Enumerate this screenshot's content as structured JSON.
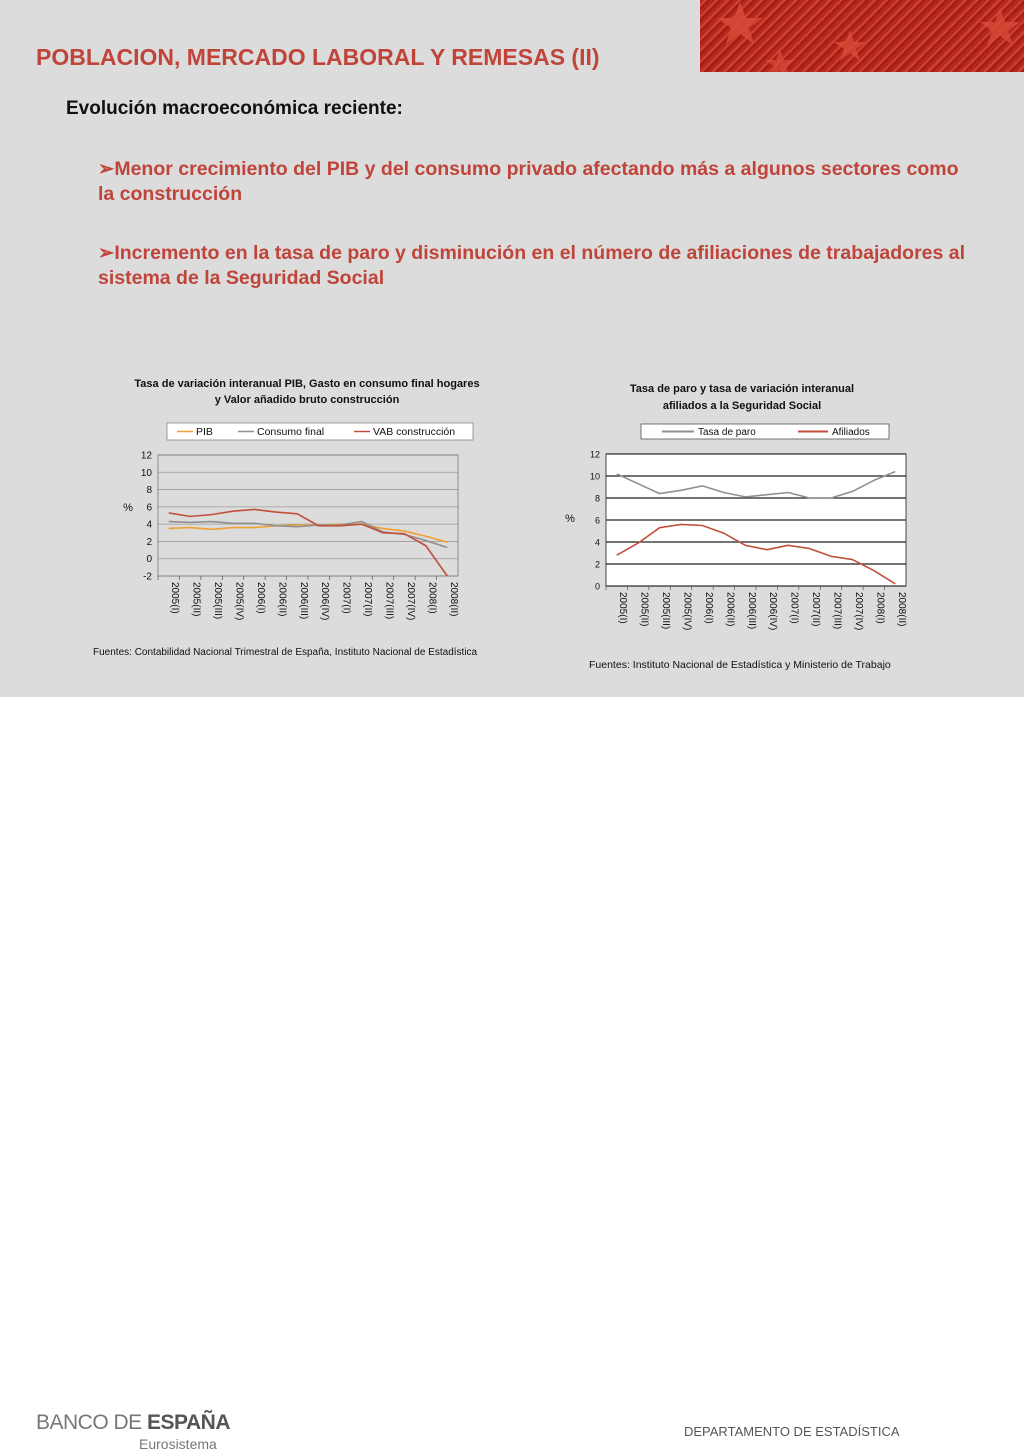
{
  "header": {
    "title": "POBLACION, MERCADO LABORAL Y REMESAS (II)"
  },
  "content": {
    "subtitle": "Evolución macroeconómica reciente:",
    "bullets": [
      {
        "arrow": "➢",
        "text": "Menor crecimiento del PIB y del consumo privado afectando más a algunos sectores como la construcción"
      },
      {
        "arrow": "➢",
        "text": "Incremento en la tasa de paro y disminución en el número de afiliaciones de trabajadores al sistema de la Seguridad Social"
      }
    ]
  },
  "chart_data": [
    {
      "type": "line",
      "title": "Tasa de variación interanual PIB, Gasto en consumo final hogares y Valor añadido bruto construcción",
      "title_lines": [
        "Tasa de variación interanual PIB, Gasto en consumo final hogares",
        "y Valor añadido bruto construcción"
      ],
      "ylabel": "%",
      "ylim": [
        -2,
        12
      ],
      "yticks": [
        "12",
        "10",
        "8",
        "6",
        "4",
        "2",
        "0",
        "-2"
      ],
      "grid": true,
      "legend": "top",
      "categories": [
        "2005(I)",
        "2005(II)",
        "2005(III)",
        "2005(IV)",
        "2006(I)",
        "2006(II)",
        "2006(III)",
        "2006(IV)",
        "2007(I)",
        "2007(II)",
        "2007(III)",
        "2007(IV)",
        "2008(I)",
        "2008(II)"
      ],
      "series": [
        {
          "name": "PIB",
          "color": "#f0a030",
          "values": [
            3.5,
            3.6,
            3.4,
            3.6,
            3.6,
            3.8,
            3.9,
            3.9,
            4.0,
            4.0,
            3.5,
            3.2,
            2.6,
            1.9
          ]
        },
        {
          "name": "Consumo final",
          "color": "#909090",
          "values": [
            4.3,
            4.2,
            4.3,
            4.1,
            4.1,
            3.8,
            3.7,
            3.9,
            3.9,
            4.3,
            3.1,
            2.8,
            2.1,
            1.3
          ]
        },
        {
          "name": "VAB construcción",
          "color": "#c0503c",
          "values": [
            5.3,
            4.9,
            5.1,
            5.5,
            5.7,
            5.4,
            5.2,
            3.8,
            3.8,
            4.0,
            3.0,
            2.9,
            1.5,
            -2.0
          ]
        }
      ],
      "source": "Fuentes: Contabilidad Nacional Trimestral de España, Instituto Nacional de Estadística"
    },
    {
      "type": "line",
      "title": "Tasa de paro y tasa de variación interanual afiliados a la Seguridad Social",
      "title_lines": [
        "Tasa de paro y tasa de variación interanual",
        "afiliados a la Seguridad Social"
      ],
      "ylabel": "%",
      "ylim": [
        0,
        12
      ],
      "yticks": [
        "12",
        "10",
        "8",
        "6",
        "4",
        "2",
        "0"
      ],
      "grid": true,
      "legend": "top",
      "categories": [
        "2005(I)",
        "2005(II)",
        "2005(III)",
        "2005(IV)",
        "2006(I)",
        "2006(II)",
        "2006(III)",
        "2006(IV)",
        "2007(I)",
        "2007(II)",
        "2007(III)",
        "2007(IV)",
        "2008(I)",
        "2008(II)"
      ],
      "series": [
        {
          "name": "Tasa de paro",
          "color": "#909090",
          "values": [
            10.2,
            9.3,
            8.4,
            8.7,
            9.1,
            8.5,
            8.1,
            8.3,
            8.5,
            8.0,
            8.0,
            8.6,
            9.6,
            10.4
          ]
        },
        {
          "name": "Afiliados",
          "color": "#c0503c",
          "values": [
            2.8,
            3.9,
            5.3,
            5.6,
            5.5,
            4.8,
            3.7,
            3.3,
            3.7,
            3.4,
            2.7,
            2.4,
            1.4,
            0.2
          ]
        }
      ],
      "source": "Fuentes: Instituto Nacional de Estadística y Ministerio de Trabajo"
    }
  ],
  "footer": {
    "brand_light": "BANCO DE ",
    "brand_bold": "ESPAÑA",
    "brand_sub": "Eurosistema",
    "department": "DEPARTAMENTO DE ESTADÍSTICA"
  }
}
